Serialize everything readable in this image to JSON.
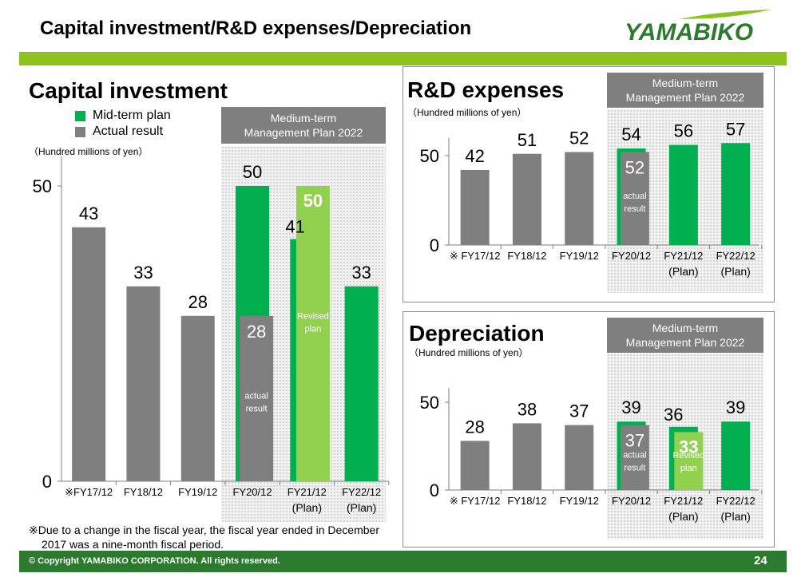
{
  "slide": {
    "title": "Capital investment/R&D expenses/Depreciation",
    "logo_text": "YAMABIKO",
    "footer": "© Copyright YAMABIKO CORPORATION. All rights reserved.",
    "page_number": "24",
    "colors": {
      "plan_green": "#00b050",
      "actual_gray": "#7f7f7f",
      "revised_green": "#92d050",
      "band_green": "#8dc21f",
      "footer_green": "#2b7a2e"
    }
  },
  "capital": {
    "title": "Capital investment",
    "units": "（Hundred millions of yen）",
    "legend": {
      "plan": "Mid-term plan",
      "actual": "Actual result"
    },
    "mtp_box": [
      "Medium-term",
      "Management Plan 2022"
    ],
    "note_lines": [
      "※Due to a change in the fiscal year, the fiscal year ended in December",
      "2017 was a nine-month fiscal period."
    ]
  },
  "rd": {
    "title": "R&D expenses",
    "units": "（Hundred millions of yen）",
    "mtp_box": [
      "Medium-term",
      "Management Plan 2022"
    ]
  },
  "dep": {
    "title": "Depreciation",
    "units": "（Hundred millions of yen）",
    "mtp_box": [
      "Medium-term",
      "Management Plan 2022"
    ]
  },
  "chart_data": [
    {
      "type": "bar",
      "title": "Capital investment",
      "ylabel": "（Hundred millions of yen）",
      "ylim": [
        0,
        50
      ],
      "yticks": [
        "0",
        "50"
      ],
      "categories": [
        "※FY17/12",
        "FY18/12",
        "FY19/12",
        "FY20/12",
        "FY21/12",
        "FY22/12"
      ],
      "category_sublabels": [
        "",
        "",
        "",
        "",
        "(Plan)",
        "(Plan)"
      ],
      "series": [
        {
          "name": "Actual result",
          "values": [
            43,
            33,
            28,
            28,
            null,
            null
          ],
          "labels": [
            "43",
            "33",
            "28",
            "28",
            "",
            ""
          ]
        },
        {
          "name": "Mid-term plan",
          "values": [
            null,
            null,
            null,
            50,
            41,
            33
          ],
          "labels": [
            "",
            "",
            "",
            "50",
            "41",
            "33"
          ]
        },
        {
          "name": "Revised plan",
          "values": [
            null,
            null,
            null,
            null,
            50,
            null
          ],
          "labels": [
            "",
            "",
            "",
            "",
            "50",
            ""
          ]
        }
      ],
      "annotations": {
        "actual_result": "actual result",
        "revised_plan": "Revised plan"
      }
    },
    {
      "type": "bar",
      "title": "R&D expenses",
      "ylabel": "（Hundred millions of yen）",
      "ylim": [
        0,
        60
      ],
      "yticks": [
        "0",
        "50"
      ],
      "categories": [
        "※ FY17/12",
        "FY18/12",
        "FY19/12",
        "FY20/12",
        "FY21/12",
        "FY22/12"
      ],
      "category_sublabels": [
        "",
        "",
        "",
        "",
        "(Plan)",
        "(Plan)"
      ],
      "series": [
        {
          "name": "Actual result",
          "values": [
            42,
            51,
            52,
            52,
            null,
            null
          ],
          "labels": [
            "42",
            "51",
            "52",
            "52",
            "",
            ""
          ]
        },
        {
          "name": "Mid-term plan",
          "values": [
            null,
            null,
            null,
            54,
            56,
            57
          ],
          "labels": [
            "",
            "",
            "",
            "54",
            "56",
            "57"
          ]
        }
      ],
      "annotations": {
        "actual_result": "actual result"
      }
    },
    {
      "type": "bar",
      "title": "Depreciation",
      "ylabel": "（Hundred millions of yen）",
      "ylim": [
        0,
        50
      ],
      "yticks": [
        "0",
        "50"
      ],
      "categories": [
        "※ FY17/12",
        "FY18/12",
        "FY19/12",
        "FY20/12",
        "FY21/12",
        "FY22/12"
      ],
      "category_sublabels": [
        "",
        "",
        "",
        "",
        "(Plan)",
        "(Plan)"
      ],
      "series": [
        {
          "name": "Actual result",
          "values": [
            28,
            38,
            37,
            37,
            null,
            null
          ],
          "labels": [
            "28",
            "38",
            "37",
            "37",
            "",
            ""
          ]
        },
        {
          "name": "Mid-term plan",
          "values": [
            null,
            null,
            null,
            39,
            36,
            39
          ],
          "labels": [
            "",
            "",
            "",
            "39",
            "36",
            "39"
          ]
        },
        {
          "name": "Revised plan",
          "values": [
            null,
            null,
            null,
            null,
            33,
            null
          ],
          "labels": [
            "",
            "",
            "",
            "",
            "33",
            ""
          ]
        }
      ],
      "annotations": {
        "actual_result": "actual result",
        "revised_plan": "Revised plan"
      }
    }
  ]
}
